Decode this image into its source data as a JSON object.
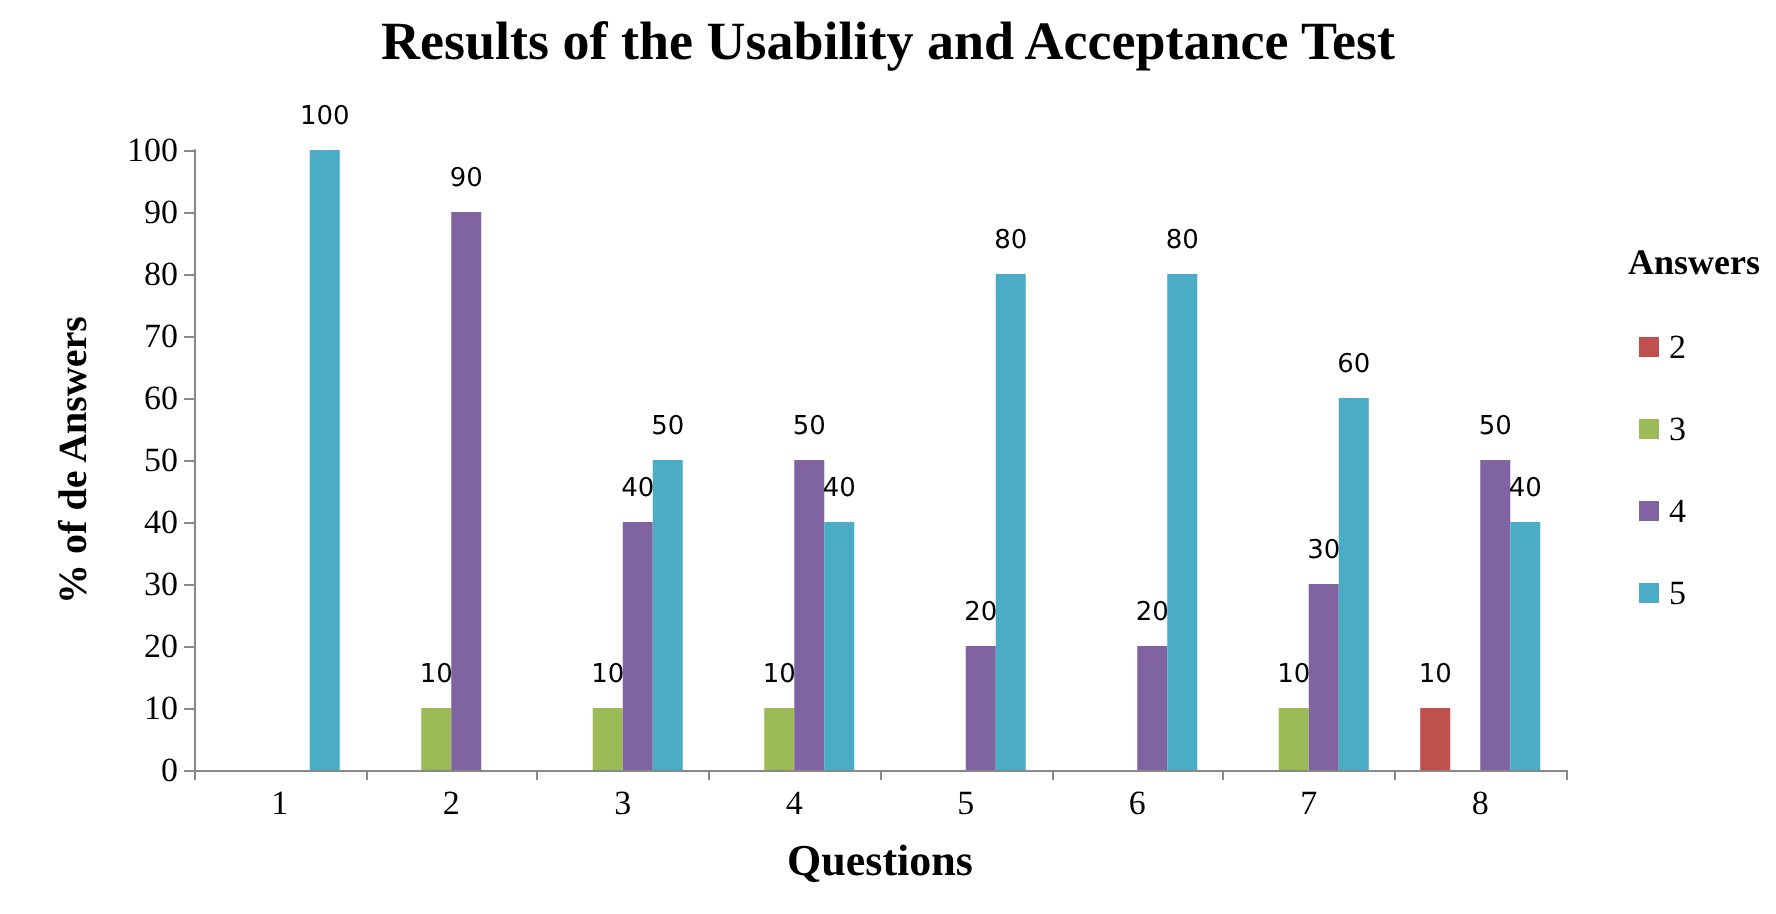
{
  "chart_data": {
    "type": "bar",
    "title": "Results of the Usability and Acceptance Test",
    "xlabel": "Questions",
    "ylabel": "% of de Answers",
    "legend_title": "Answers",
    "categories": [
      "1",
      "2",
      "3",
      "4",
      "5",
      "6",
      "7",
      "8"
    ],
    "series": [
      {
        "name": "2",
        "color": "#c0504d",
        "values": [
          null,
          null,
          null,
          null,
          null,
          null,
          null,
          10
        ]
      },
      {
        "name": "3",
        "color": "#9bbb59",
        "values": [
          null,
          10,
          10,
          10,
          null,
          null,
          10,
          null
        ]
      },
      {
        "name": "4",
        "color": "#8064a2",
        "values": [
          null,
          90,
          40,
          50,
          20,
          20,
          30,
          50
        ]
      },
      {
        "name": "5",
        "color": "#4bacc6",
        "values": [
          100,
          null,
          50,
          40,
          80,
          80,
          60,
          40
        ]
      }
    ],
    "ylim": [
      0,
      100
    ],
    "yticks": [
      0,
      10,
      20,
      30,
      40,
      50,
      60,
      70,
      80,
      90,
      100
    ],
    "grid": false,
    "legend": "right",
    "data_labels": true
  }
}
